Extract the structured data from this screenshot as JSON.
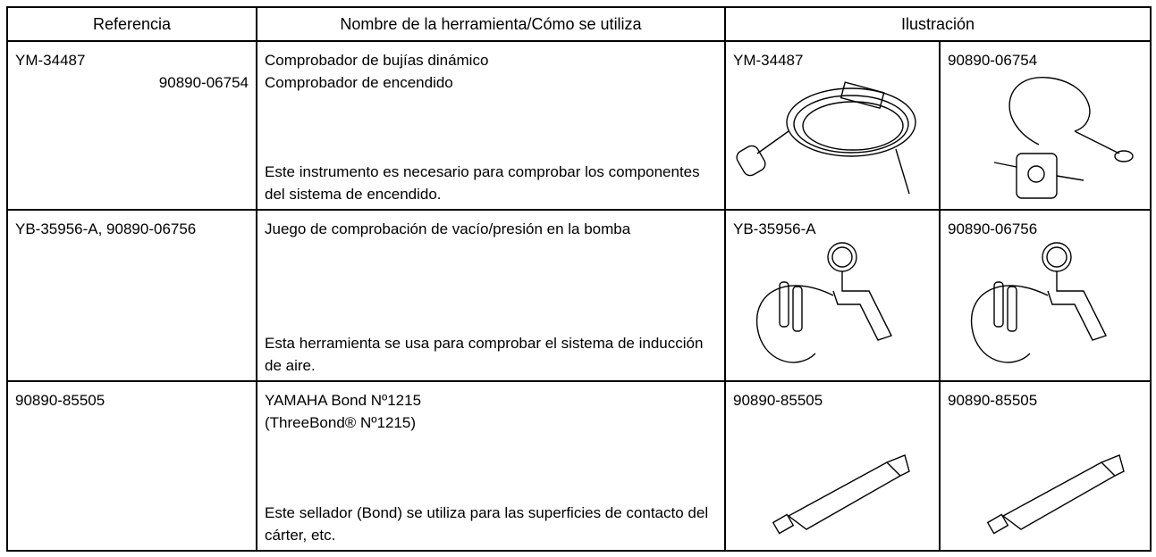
{
  "table": {
    "header": [
      "Referencia",
      "Nombre de la herramienta/Cómo se utiliza",
      "Ilustración"
    ],
    "rows": [
      {
        "reference": [
          "YM-34487",
          "90890-06754"
        ],
        "name": [
          "Comprobador de bujías dinámico",
          "Comprobador de encendido"
        ],
        "usage": "Este instrumento es necesario para comprobar los componentes del sistema de encendido.",
        "illustrations": [
          "YM-34487",
          "90890-06754"
        ]
      },
      {
        "reference": [
          "YB-35956-A, 90890-06756"
        ],
        "name": [
          "Juego de comprobación de vacío/presión en la bomba"
        ],
        "usage": "Esta herramienta se usa para comprobar el sistema de inducción de aire.",
        "illustrations": [
          "YB-35956-A",
          "90890-06756"
        ]
      },
      {
        "reference": [
          "90890-85505"
        ],
        "name": [
          "YAMAHA Bond Nº1215",
          "(ThreeBond® Nº1215)"
        ],
        "usage": "Este sellador (Bond) se utiliza para las superficies de contacto del cárter, etc.",
        "illustrations": [
          "90890-85505",
          "90890-85505"
        ]
      }
    ]
  }
}
